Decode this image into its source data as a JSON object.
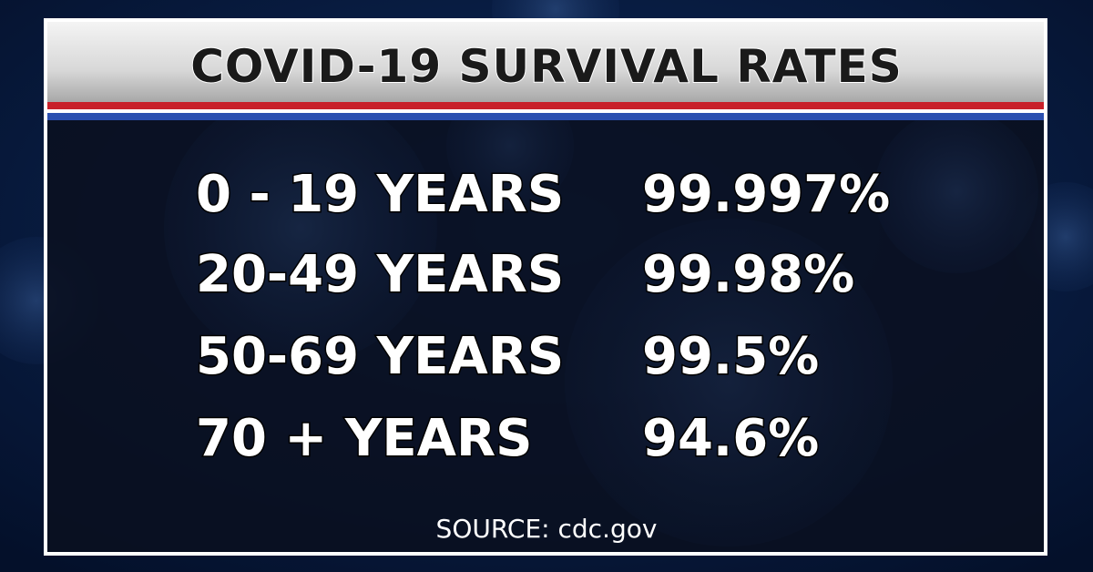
{
  "header": {
    "title": "COVID-19 SURVIVAL RATES"
  },
  "table": {
    "rows": [
      [
        "0 - 19  YEARS",
        "99.997%"
      ],
      [
        "20-49 YEARS",
        "99.98%"
      ],
      [
        "50-69 YEARS",
        "99.5%"
      ],
      [
        "70 + YEARS",
        "94.6%"
      ]
    ]
  },
  "footer": {
    "source": "SOURCE: cdc.gov"
  }
}
